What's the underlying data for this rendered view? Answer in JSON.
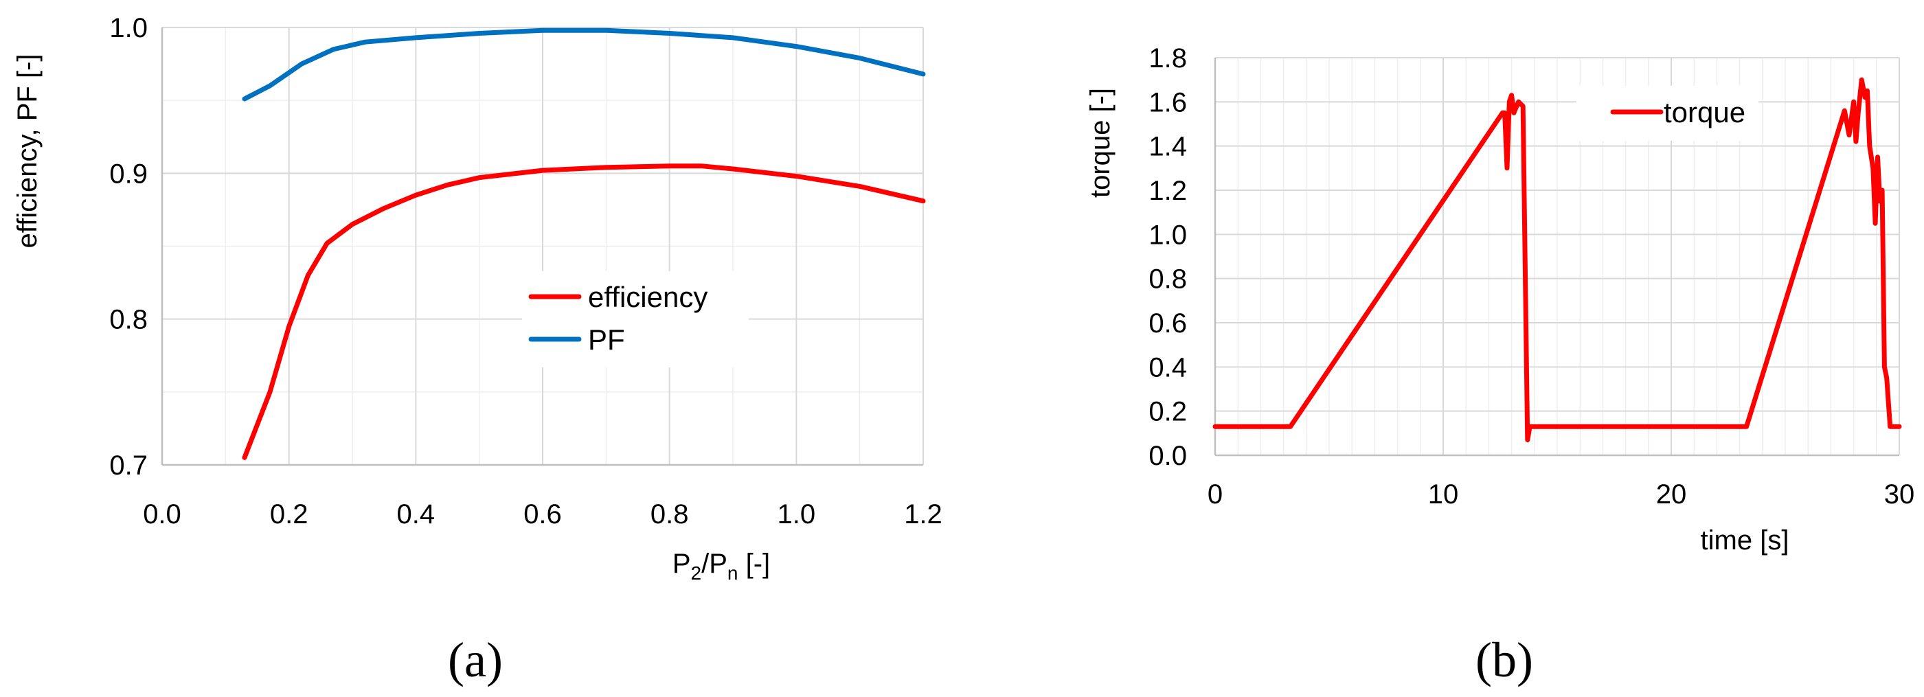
{
  "chart_data": [
    {
      "type": "line",
      "panel_label": "(a)",
      "xlabel": "P",
      "xlabel_sub1": "2",
      "xlabel_mid": "/P",
      "xlabel_sub2": "n",
      "xlabel_tail": " [-]",
      "ylabel": "efficiency, PF [-]",
      "xlim": [
        0.0,
        1.2
      ],
      "ylim": [
        0.7,
        1.0
      ],
      "xticks": [
        "0.0",
        "0.2",
        "0.4",
        "0.6",
        "0.8",
        "1.0",
        "1.2"
      ],
      "yticks": [
        "0.7",
        "0.8",
        "0.9",
        "1.0"
      ],
      "legend_position": "center-right",
      "series": [
        {
          "name": "efficiency",
          "color": "#ff0000",
          "points": [
            [
              0.13,
              0.705
            ],
            [
              0.17,
              0.75
            ],
            [
              0.2,
              0.795
            ],
            [
              0.23,
              0.83
            ],
            [
              0.26,
              0.852
            ],
            [
              0.3,
              0.865
            ],
            [
              0.35,
              0.876
            ],
            [
              0.4,
              0.885
            ],
            [
              0.45,
              0.892
            ],
            [
              0.5,
              0.897
            ],
            [
              0.6,
              0.902
            ],
            [
              0.7,
              0.904
            ],
            [
              0.8,
              0.905
            ],
            [
              0.85,
              0.905
            ],
            [
              0.9,
              0.903
            ],
            [
              1.0,
              0.898
            ],
            [
              1.1,
              0.891
            ],
            [
              1.2,
              0.881
            ]
          ]
        },
        {
          "name": "PF",
          "color": "#0070c0",
          "points": [
            [
              0.13,
              0.951
            ],
            [
              0.17,
              0.96
            ],
            [
              0.22,
              0.975
            ],
            [
              0.27,
              0.985
            ],
            [
              0.32,
              0.99
            ],
            [
              0.4,
              0.993
            ],
            [
              0.5,
              0.996
            ],
            [
              0.6,
              0.998
            ],
            [
              0.7,
              0.998
            ],
            [
              0.8,
              0.996
            ],
            [
              0.9,
              0.993
            ],
            [
              1.0,
              0.987
            ],
            [
              1.1,
              0.979
            ],
            [
              1.2,
              0.968
            ]
          ]
        }
      ]
    },
    {
      "type": "line",
      "panel_label": "(b)",
      "xlabel": "time [s]",
      "ylabel": "torque [-]",
      "xlim": [
        0,
        30
      ],
      "ylim": [
        0.0,
        1.8
      ],
      "xticks": [
        "0",
        "10",
        "20",
        "30"
      ],
      "yticks": [
        "0.0",
        "0.2",
        "0.4",
        "0.6",
        "0.8",
        "1.0",
        "1.2",
        "1.4",
        "1.6",
        "1.8"
      ],
      "legend_position": "top-center",
      "series": [
        {
          "name": "torque",
          "color": "#ff0000",
          "points": [
            [
              0,
              0.13
            ],
            [
              3.3,
              0.13
            ],
            [
              12.6,
              1.55
            ],
            [
              12.7,
              1.55
            ],
            [
              12.8,
              1.3
            ],
            [
              12.9,
              1.6
            ],
            [
              13.0,
              1.63
            ],
            [
              13.1,
              1.55
            ],
            [
              13.3,
              1.6
            ],
            [
              13.5,
              1.58
            ],
            [
              13.7,
              0.07
            ],
            [
              13.8,
              0.13
            ],
            [
              23.3,
              0.13
            ],
            [
              27.6,
              1.56
            ],
            [
              27.8,
              1.45
            ],
            [
              28.0,
              1.6
            ],
            [
              28.1,
              1.42
            ],
            [
              28.2,
              1.55
            ],
            [
              28.35,
              1.7
            ],
            [
              28.5,
              1.62
            ],
            [
              28.6,
              1.65
            ],
            [
              28.7,
              1.4
            ],
            [
              28.85,
              1.3
            ],
            [
              28.95,
              1.05
            ],
            [
              29.05,
              1.35
            ],
            [
              29.15,
              1.15
            ],
            [
              29.25,
              1.2
            ],
            [
              29.35,
              0.4
            ],
            [
              29.45,
              0.35
            ],
            [
              29.6,
              0.13
            ],
            [
              30,
              0.13
            ]
          ]
        }
      ]
    }
  ]
}
